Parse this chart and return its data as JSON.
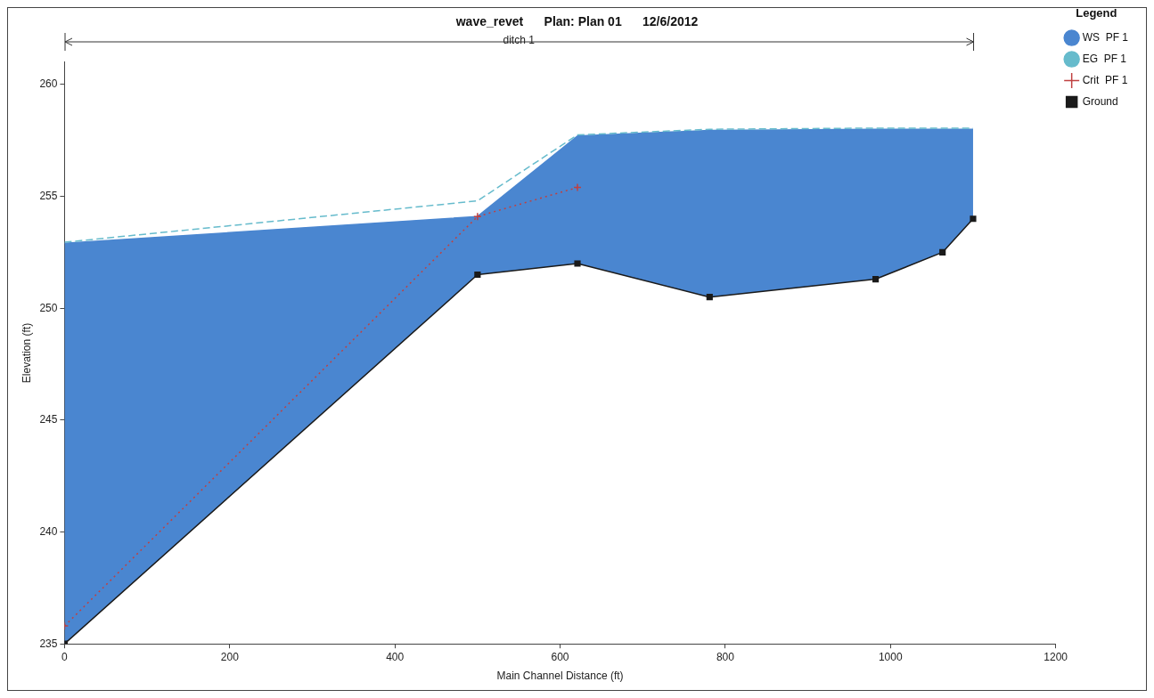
{
  "chart_data": {
    "type": "line",
    "title": "wave_revet      Plan: Plan 01      12/6/2012",
    "xlabel": "Main Channel Distance (ft)",
    "ylabel": "Elevation (ft)",
    "legend_title": "Legend",
    "legend": "top right",
    "annotations": [
      "ditch 1"
    ],
    "x": [
      0,
      500,
      621,
      781,
      982,
      1063,
      1100
    ],
    "xlim": [
      0,
      1200
    ],
    "xticks": [
      0,
      200,
      400,
      600,
      800,
      1000,
      1200
    ],
    "ylim": [
      235,
      261
    ],
    "yticks": [
      235,
      240,
      245,
      250,
      255,
      260
    ],
    "series": [
      {
        "name": "WS  PF 1",
        "type": "area",
        "color": "#4a86d0",
        "marker": "none",
        "line_style": "solid",
        "values": [
          252.9,
          254.1,
          257.7,
          257.95,
          258.0,
          258.0,
          258.0
        ]
      },
      {
        "name": "EG  PF 1",
        "color": "#66bbcc",
        "marker": "none",
        "line_style": "dashed",
        "values": [
          252.95,
          254.8,
          257.75,
          258.0,
          258.05,
          258.05,
          258.05
        ]
      },
      {
        "name": "Crit  PF 1",
        "color": "#c04040",
        "marker": "cross",
        "line_style": "dotted",
        "values": [
          235.8,
          254.1,
          255.4,
          null,
          null,
          null,
          null
        ]
      },
      {
        "name": "Ground",
        "color": "#1a1a1a",
        "marker": "square",
        "line_style": "solid",
        "values": [
          235.0,
          251.5,
          252.0,
          250.5,
          251.3,
          252.5,
          254.0
        ]
      }
    ]
  }
}
